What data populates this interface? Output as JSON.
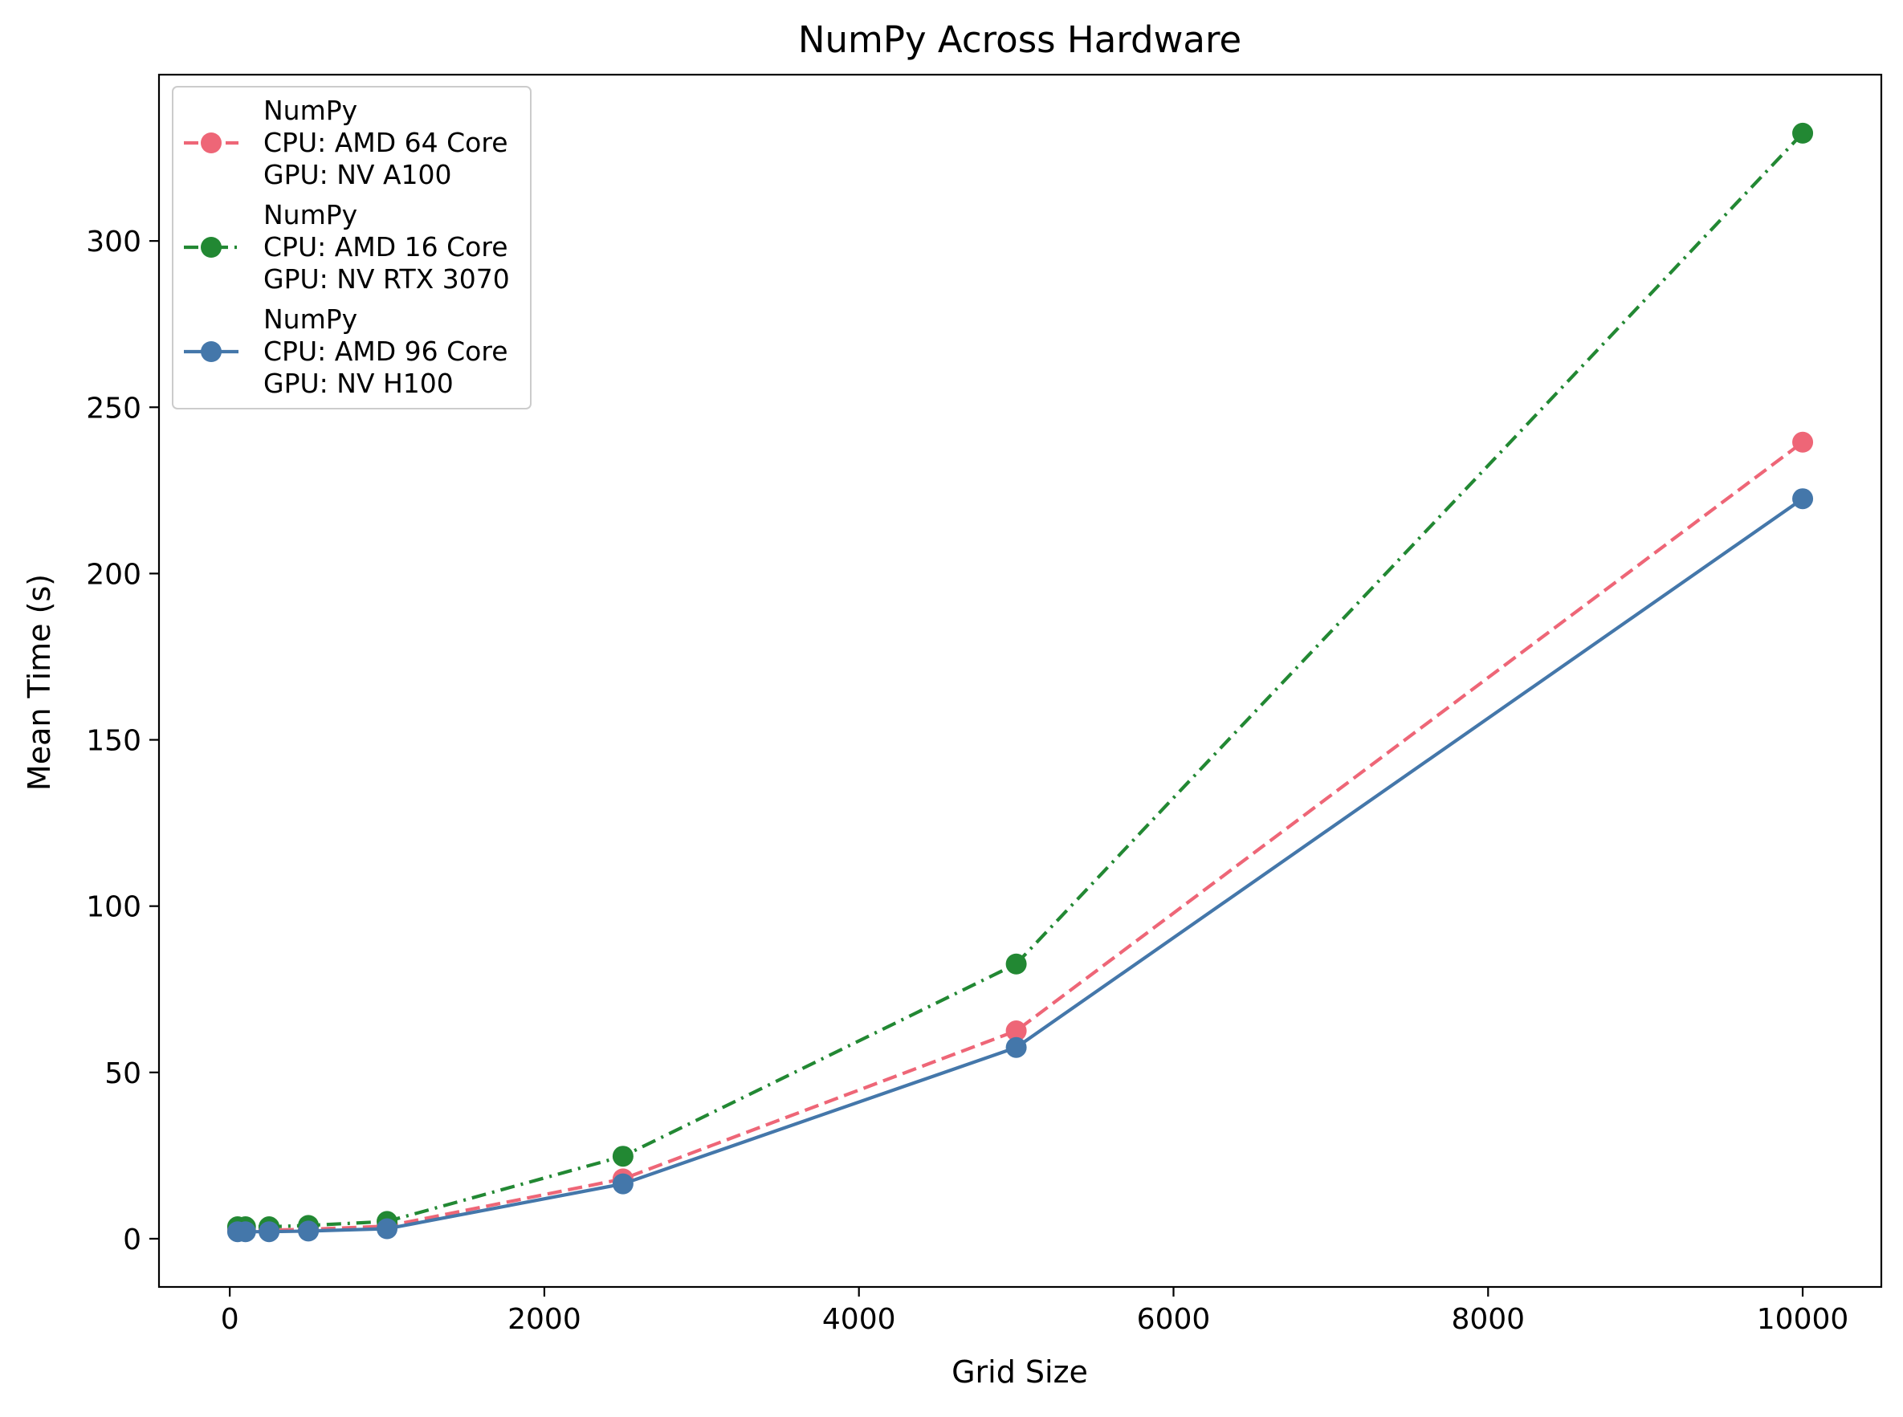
{
  "chart_data": {
    "type": "line",
    "title": "NumPy Across Hardware",
    "xlabel": "Grid Size",
    "ylabel": "Mean Time (s)",
    "xlim": [
      -450,
      10500
    ],
    "ylim": [
      -14.5,
      350
    ],
    "xticks": [
      0,
      2000,
      4000,
      6000,
      8000,
      10000
    ],
    "yticks": [
      0,
      50,
      100,
      150,
      200,
      250,
      300
    ],
    "grid": false,
    "legend_position": "top-left",
    "x": [
      50,
      100,
      250,
      500,
      1000,
      2500,
      5000,
      10000
    ],
    "series": [
      {
        "name": "NumPy\nCPU: AMD 64 Core\nGPU: NV A100",
        "legend_lines": [
          "NumPy",
          "CPU: AMD 64 Core",
          "GPU: NV A100"
        ],
        "color": "#ee6677",
        "linestyle": "dashed",
        "values": [
          2.6,
          2.6,
          2.6,
          2.8,
          3.8,
          18.0,
          62.5,
          239.5
        ]
      },
      {
        "name": "NumPy\nCPU: AMD 16 Core\nGPU: NV RTX 3070",
        "legend_lines": [
          "NumPy",
          "CPU: AMD 16 Core",
          "GPU: NV RTX 3070"
        ],
        "color": "#228833",
        "linestyle": "dashdot",
        "values": [
          3.6,
          3.6,
          3.6,
          4.0,
          5.2,
          24.8,
          82.6,
          332.4
        ]
      },
      {
        "name": "NumPy\nCPU: AMD 96 Core\nGPU: NV H100",
        "legend_lines": [
          "NumPy",
          "CPU: AMD 96 Core",
          "GPU: NV H100"
        ],
        "color": "#4477aa",
        "linestyle": "solid",
        "values": [
          2.1,
          2.1,
          2.1,
          2.3,
          3.0,
          16.5,
          57.5,
          222.5
        ]
      }
    ]
  }
}
